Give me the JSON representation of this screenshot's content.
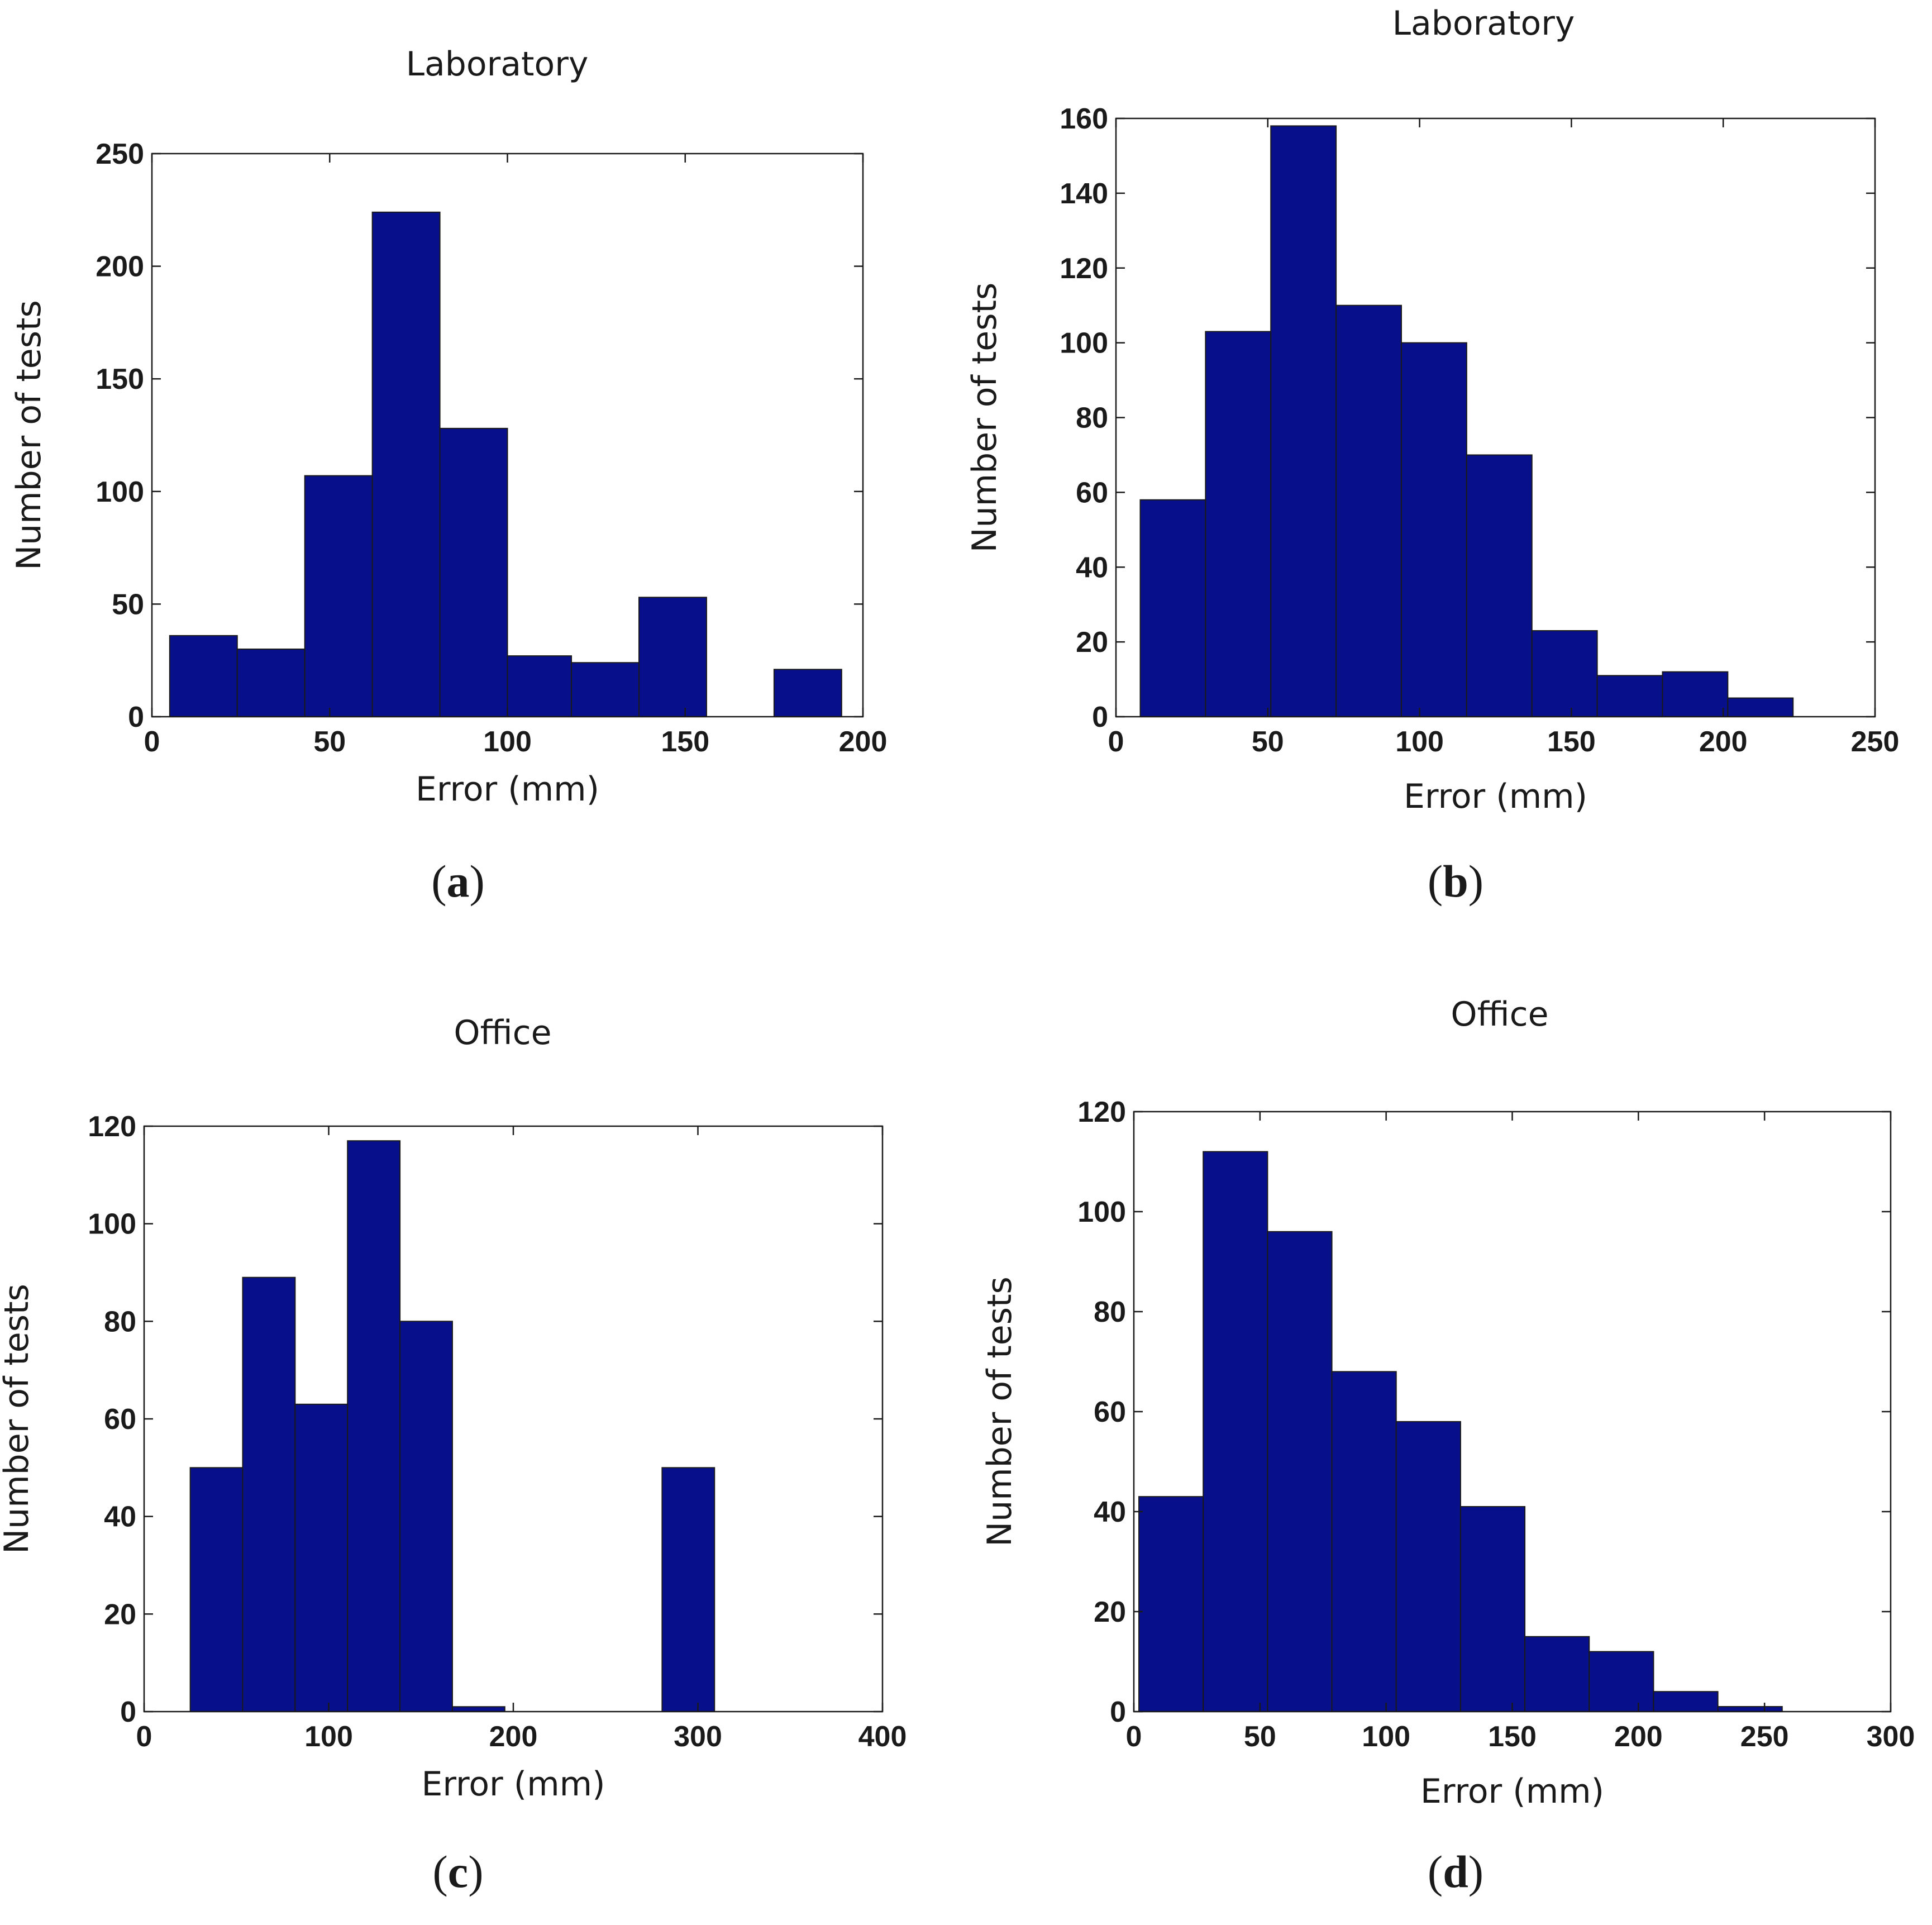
{
  "chart_data": [
    {
      "type": "bar",
      "title": "Laboratory",
      "xlabel": "Error (mm)",
      "ylabel": "Number of tests",
      "panel_label": "a",
      "xlim": [
        0,
        200
      ],
      "ylim": [
        0,
        250
      ],
      "xticks": [
        0,
        50,
        100,
        150,
        200
      ],
      "yticks": [
        0,
        50,
        100,
        150,
        200,
        250
      ],
      "bin_edges": [
        5,
        24,
        43,
        62,
        81,
        100,
        118,
        137,
        156,
        175,
        194
      ],
      "values": [
        36,
        30,
        107,
        224,
        128,
        27,
        24,
        53,
        0,
        21
      ]
    },
    {
      "type": "bar",
      "title": "Laboratory",
      "xlabel": "Error (mm)",
      "ylabel": "Number of tests",
      "panel_label": "b",
      "xlim": [
        0,
        250
      ],
      "ylim": [
        0,
        160
      ],
      "xticks": [
        0,
        50,
        100,
        150,
        200,
        250
      ],
      "yticks": [
        0,
        20,
        40,
        60,
        80,
        100,
        120,
        140,
        160
      ],
      "bin_edges": [
        8,
        29.5,
        51,
        72.5,
        94,
        115.5,
        137,
        158.5,
        180,
        201.5,
        223
      ],
      "values": [
        58,
        103,
        158,
        110,
        100,
        70,
        23,
        11,
        12,
        5
      ]
    },
    {
      "type": "bar",
      "title": "Office",
      "xlabel": "Error (mm)",
      "ylabel": "Number of tests",
      "panel_label": "c",
      "xlim": [
        0,
        400
      ],
      "ylim": [
        0,
        120
      ],
      "xticks": [
        0,
        100,
        200,
        300,
        400
      ],
      "yticks": [
        0,
        20,
        40,
        60,
        80,
        100,
        120
      ],
      "bin_edges": [
        25,
        53.4,
        81.8,
        110.2,
        138.6,
        167,
        195.4,
        223.8,
        252.2,
        280.6,
        309
      ],
      "values": [
        50,
        89,
        63,
        117,
        80,
        1,
        0,
        0,
        0,
        50
      ]
    },
    {
      "type": "bar",
      "title": "Office",
      "xlabel": "Error (mm)",
      "ylabel": "Number of tests",
      "panel_label": "d",
      "xlim": [
        0,
        300
      ],
      "ylim": [
        0,
        120
      ],
      "xticks": [
        0,
        50,
        100,
        150,
        200,
        250,
        300
      ],
      "yticks": [
        0,
        20,
        40,
        60,
        80,
        100,
        120
      ],
      "bin_edges": [
        2,
        27.5,
        53,
        78.5,
        104,
        129.5,
        155,
        180.5,
        206,
        231.5,
        257
      ],
      "values": [
        43,
        112,
        96,
        68,
        58,
        41,
        15,
        12,
        4,
        1
      ]
    }
  ]
}
